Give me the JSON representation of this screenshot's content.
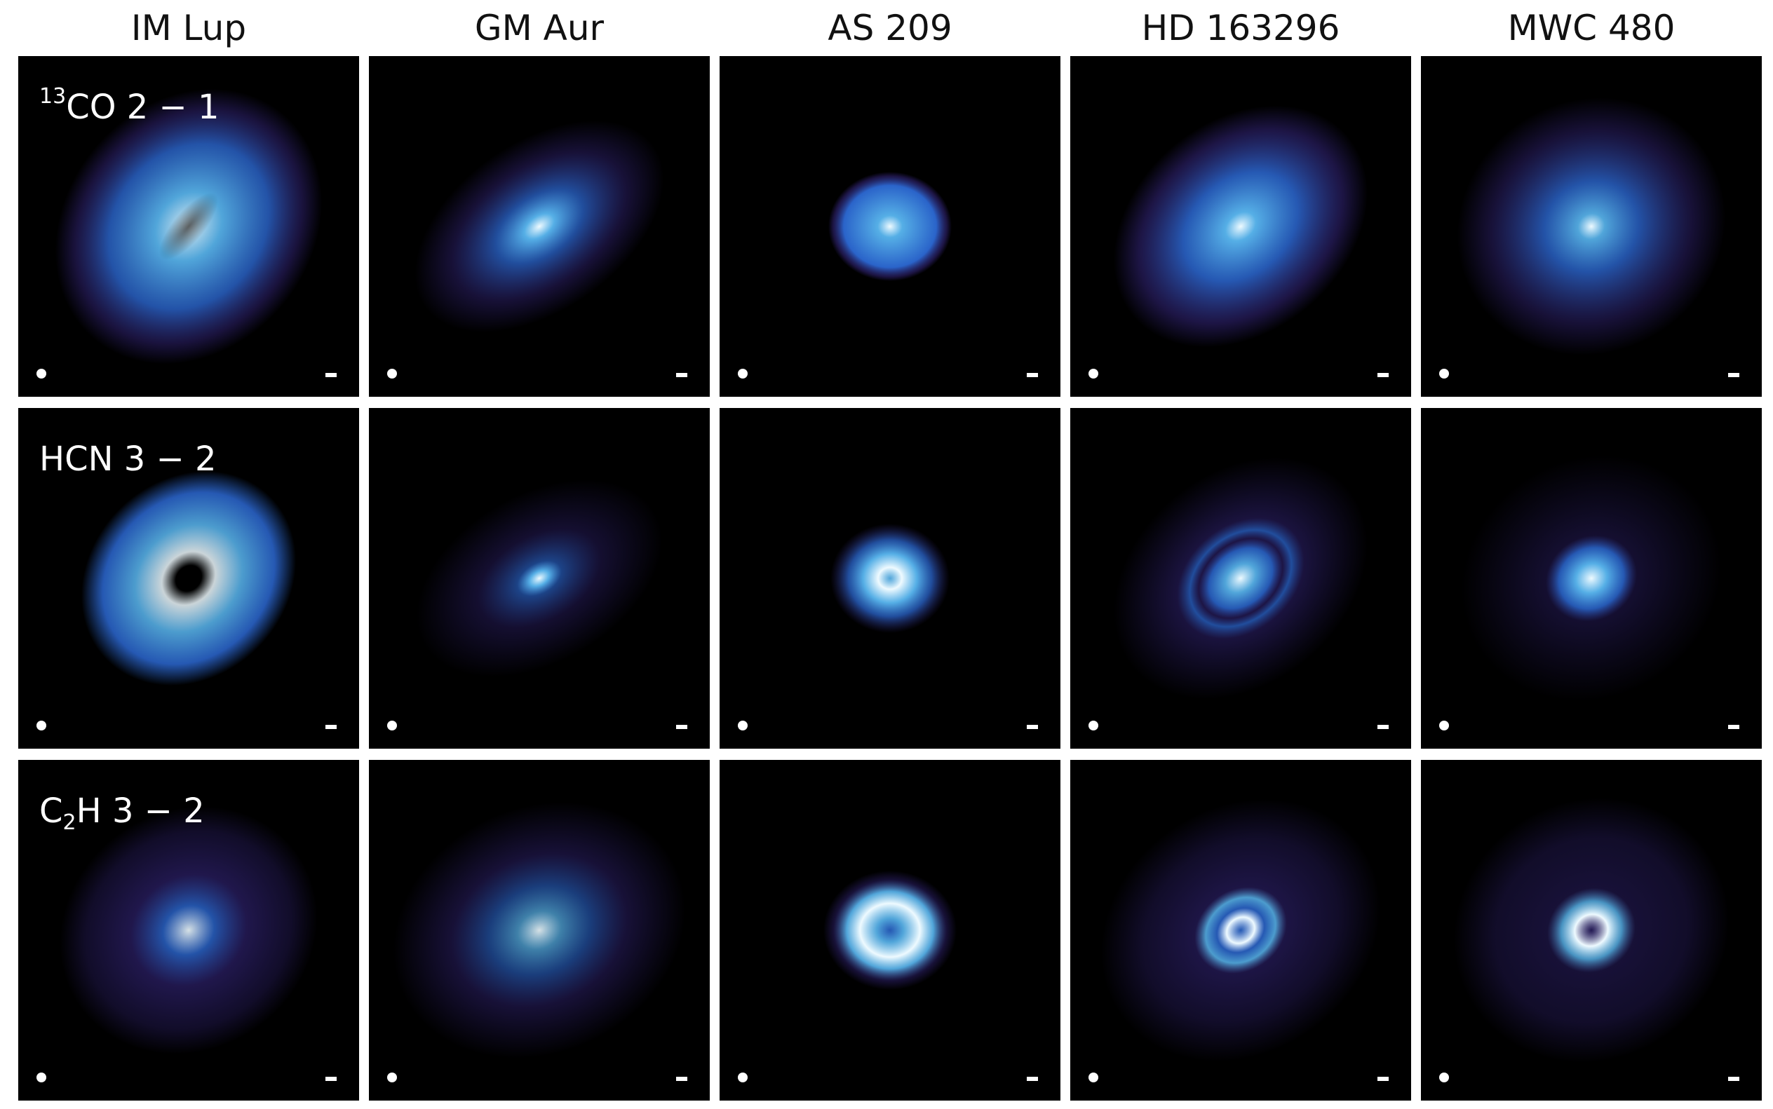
{
  "columns": [
    "IM Lup",
    "GM Aur",
    "AS 209",
    "HD 163296",
    "MWC 480"
  ],
  "rows": [
    {
      "pre": "",
      "sup": "13",
      "main": "CO",
      "sub": "",
      "post": " 2 − 1"
    },
    {
      "pre": "HCN",
      "sup": "",
      "main": "",
      "sub": "",
      "post": " 3 − 2"
    },
    {
      "pre": "C",
      "sup": "",
      "main": "",
      "sub": "2",
      "post": "H 3 − 2"
    }
  ],
  "colors": {
    "background": "#000000",
    "dim": "#3a2a8a",
    "mid": "#2f6fe0",
    "bright": "#5ab8f2",
    "peak": "#eefaff"
  },
  "icons": {
    "beam": "beam-ellipse-icon",
    "scale": "scale-bar-icon"
  }
}
